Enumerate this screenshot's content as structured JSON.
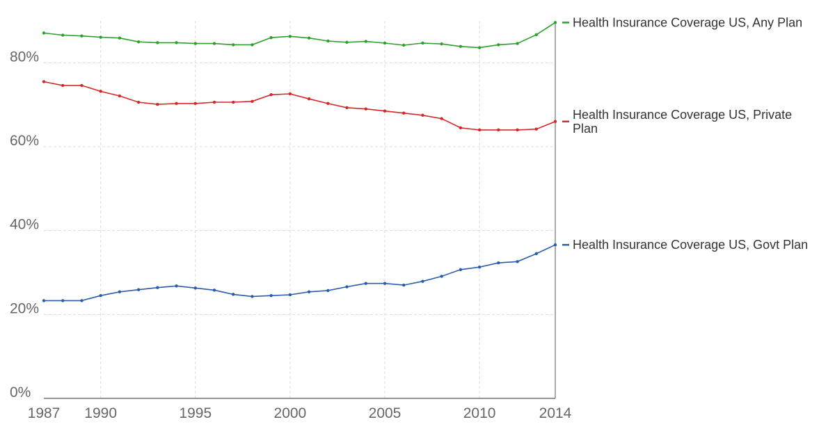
{
  "chart_data": {
    "type": "line",
    "title": "",
    "xlabel": "",
    "ylabel": "",
    "xlim": [
      1987,
      2014
    ],
    "ylim": [
      0,
      90
    ],
    "x_ticks": [
      1987,
      1990,
      1995,
      2000,
      2005,
      2010,
      2014
    ],
    "x_tick_labels": [
      "1987",
      "1990",
      "1995",
      "2000",
      "2005",
      "2010",
      "2014"
    ],
    "y_ticks": [
      0,
      20,
      40,
      60,
      80
    ],
    "y_tick_labels": [
      "0%",
      "20%",
      "40%",
      "60%",
      "80%"
    ],
    "grid": true,
    "legend_placement": "right, at line ends",
    "x": [
      1987,
      1988,
      1989,
      1990,
      1991,
      1992,
      1993,
      1994,
      1995,
      1996,
      1997,
      1998,
      1999,
      2000,
      2001,
      2002,
      2003,
      2004,
      2005,
      2006,
      2007,
      2008,
      2009,
      2010,
      2011,
      2012,
      2013,
      2014
    ],
    "series": [
      {
        "name": "Health Insurance Coverage US, Any Plan",
        "label_lines": [
          "Health Insurance Coverage US, Any Plan"
        ],
        "color": "#2ca02c",
        "values": [
          87.1,
          86.6,
          86.4,
          86.1,
          85.9,
          85.0,
          84.8,
          84.8,
          84.6,
          84.6,
          84.3,
          84.3,
          86.0,
          86.3,
          85.9,
          85.2,
          84.9,
          85.1,
          84.7,
          84.2,
          84.7,
          84.5,
          83.9,
          83.6,
          84.3,
          84.6,
          86.7,
          89.6
        ]
      },
      {
        "name": "Health Insurance Coverage US, Private Plan",
        "label_lines": [
          "Health Insurance Coverage US, Private",
          "Plan"
        ],
        "color": "#d62728",
        "values": [
          75.5,
          74.6,
          74.6,
          73.2,
          72.1,
          70.6,
          70.1,
          70.3,
          70.3,
          70.6,
          70.6,
          70.8,
          72.4,
          72.6,
          71.4,
          70.3,
          69.3,
          69.0,
          68.5,
          68.0,
          67.5,
          66.7,
          64.5,
          64.0,
          64.0,
          64.0,
          64.2,
          66.0
        ]
      },
      {
        "name": "Health Insurance Coverage US, Govt Plan",
        "label_lines": [
          "Health Insurance Coverage US, Govt Plan"
        ],
        "color": "#2a5ca8",
        "values": [
          23.3,
          23.3,
          23.3,
          24.5,
          25.4,
          25.9,
          26.4,
          26.8,
          26.3,
          25.8,
          24.8,
          24.3,
          24.5,
          24.7,
          25.4,
          25.7,
          26.6,
          27.4,
          27.4,
          27.0,
          27.9,
          29.1,
          30.7,
          31.3,
          32.3,
          32.6,
          34.5,
          36.6
        ]
      }
    ]
  }
}
